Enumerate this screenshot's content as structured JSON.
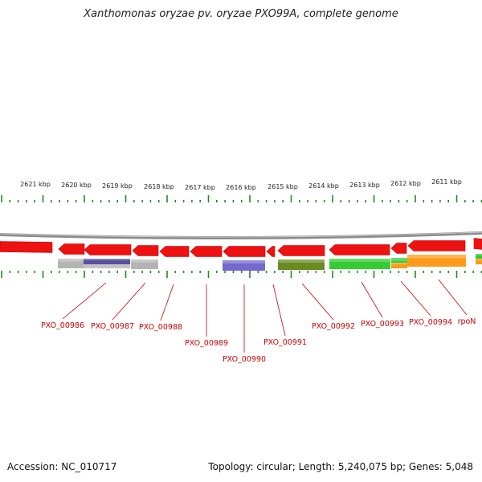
{
  "title": "Xanthomonas oryzae pv. oryzae PXO99A, complete genome",
  "footer": {
    "accession": "Accession: NC_010717",
    "topology": "Topology: circular; Length: 5,240,075 bp; Genes: 5,048"
  },
  "colors": {
    "backbone": "#8c8c8c",
    "tick": "#1e8a1e",
    "gene_forward": "#ee1111",
    "label": "#cc0000"
  },
  "scale_labels": [
    "2621 kbp",
    "2620 kbp",
    "2619 kbp",
    "2618 kbp",
    "2617 kbp",
    "2616 kbp",
    "2615 kbp",
    "2614 kbp",
    "2613 kbp",
    "2612 kbp",
    "2611 kbp"
  ],
  "genes": [
    {
      "name": "PXO_00986",
      "feature_color": "#b4b4b4"
    },
    {
      "name": "PXO_00987",
      "feature_color": "#58509c"
    },
    {
      "name": "PXO_00988",
      "feature_color": "#b4b4b4"
    },
    {
      "name": "PXO_00989",
      "feature_color": null
    },
    {
      "name": "PXO_00990",
      "feature_color": "#7468d0"
    },
    {
      "name": "PXO_00991",
      "feature_color": null
    },
    {
      "name": "PXO_00992",
      "feature_color": "#6b8a22"
    },
    {
      "name": "PXO_00993",
      "feature_color": "#33cc33"
    },
    {
      "name": "PXO_00994",
      "feature_color": "#ff9a1a"
    },
    {
      "name": "rpoN",
      "feature_color": "#ff9a1a"
    }
  ]
}
